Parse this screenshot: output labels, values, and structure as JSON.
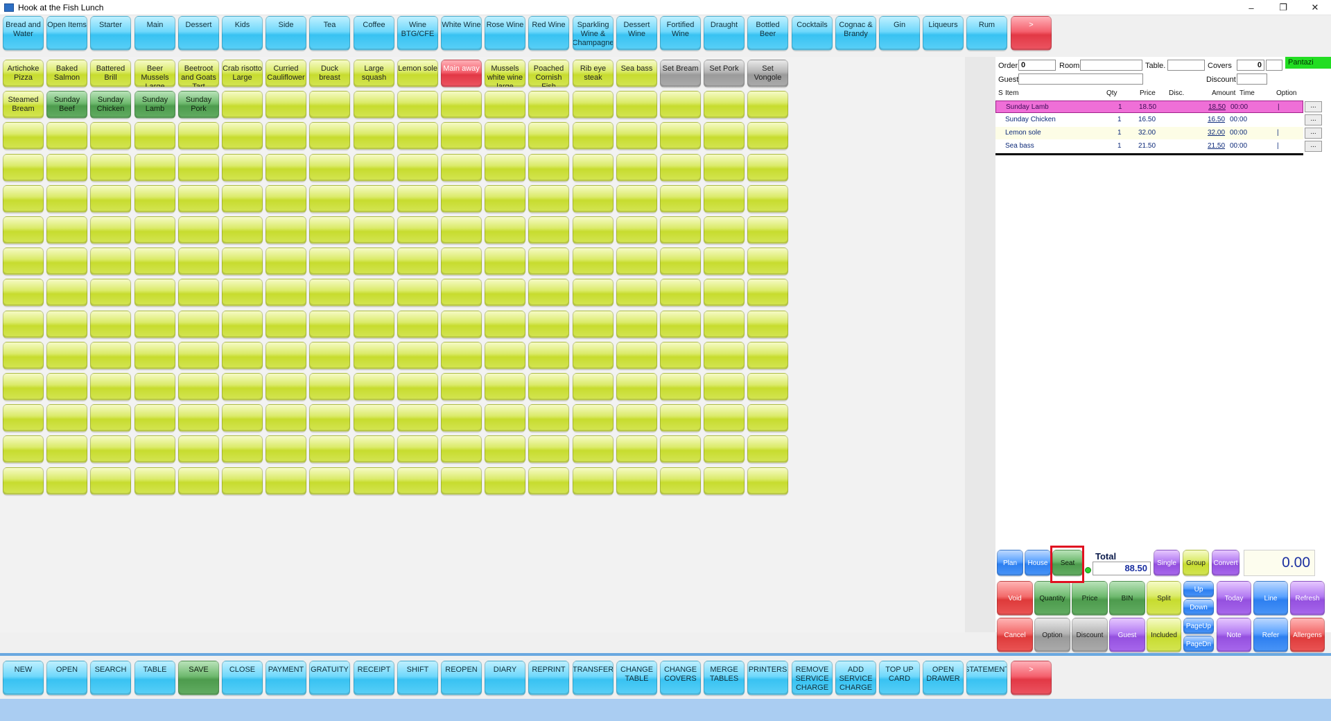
{
  "window": {
    "title": "Hook at the Fish Lunch",
    "controls": {
      "minimize": "–",
      "maximize": "❐",
      "close": "✕"
    }
  },
  "categories": [
    {
      "label": "Bread and Water",
      "color": "cyan"
    },
    {
      "label": "Open Items",
      "color": "cyan"
    },
    {
      "label": "Starter",
      "color": "cyan"
    },
    {
      "label": "Main",
      "color": "cyan"
    },
    {
      "label": "Dessert",
      "color": "cyan"
    },
    {
      "label": "Kids",
      "color": "cyan"
    },
    {
      "label": "Side",
      "color": "cyan"
    },
    {
      "label": "Tea",
      "color": "cyan"
    },
    {
      "label": "Coffee",
      "color": "cyan"
    },
    {
      "label": "Wine BTG/CFE",
      "color": "cyan"
    },
    {
      "label": "White Wine",
      "color": "cyan"
    },
    {
      "label": "Rose Wine",
      "color": "cyan"
    },
    {
      "label": "Red Wine",
      "color": "cyan"
    },
    {
      "label": "Sparkling Wine & Champagne",
      "color": "cyan"
    },
    {
      "label": "Dessert Wine",
      "color": "cyan"
    },
    {
      "label": "Fortified Wine",
      "color": "cyan"
    },
    {
      "label": "Draught",
      "color": "cyan"
    },
    {
      "label": "Bottled Beer",
      "color": "cyan"
    },
    {
      "label": "Cocktails",
      "color": "cyan"
    },
    {
      "label": "Cognac & Brandy",
      "color": "cyan"
    },
    {
      "label": "Gin",
      "color": "cyan"
    },
    {
      "label": "Liqueurs",
      "color": "cyan"
    },
    {
      "label": "Rum",
      "color": "cyan"
    },
    {
      "label": ">",
      "color": "red"
    }
  ],
  "products": [
    {
      "label": "Artichoke Pizza",
      "color": "lime"
    },
    {
      "label": "Baked Salmon",
      "color": "lime"
    },
    {
      "label": "Battered Brill",
      "color": "lime"
    },
    {
      "label": "Beer Mussels Large",
      "color": "lime"
    },
    {
      "label": "Beetroot and Goats Tart",
      "color": "lime"
    },
    {
      "label": "Crab risotto Large",
      "color": "lime"
    },
    {
      "label": "Curried Cauliflower",
      "color": "lime"
    },
    {
      "label": "Duck breast",
      "color": "lime"
    },
    {
      "label": "Large squash",
      "color": "lime"
    },
    {
      "label": "Lemon sole",
      "color": "lime"
    },
    {
      "label": "Main away",
      "color": "red"
    },
    {
      "label": "Mussels white wine large",
      "color": "lime"
    },
    {
      "label": "Poached Cornish Fish",
      "color": "lime"
    },
    {
      "label": "Rib eye steak",
      "color": "lime"
    },
    {
      "label": "Sea bass",
      "color": "lime"
    },
    {
      "label": "Set Bream",
      "color": "gray"
    },
    {
      "label": "Set Pork",
      "color": "gray"
    },
    {
      "label": "Set Vongole",
      "color": "gray"
    },
    {
      "label": "Steamed Bream",
      "color": "lime"
    },
    {
      "label": "Sunday Beef",
      "color": "green"
    },
    {
      "label": "Sunday Chicken",
      "color": "green"
    },
    {
      "label": "Sunday Lamb",
      "color": "green"
    },
    {
      "label": "Sunday Pork",
      "color": "green"
    }
  ],
  "order_header": {
    "order_label": "Order",
    "order_value": "0",
    "room_label": "Room",
    "room_value": "",
    "table_label": "Table.",
    "table_value": "",
    "covers_label": "Covers",
    "covers_value": "0",
    "guest_label": "Guest",
    "guest_value": "",
    "discount_label": "Discount",
    "discount_value": "",
    "user": "Pantazi"
  },
  "item_columns": [
    "S",
    "Item",
    "Qty",
    "Price",
    "Disc.",
    "Amount",
    "Time",
    "Option"
  ],
  "items": [
    {
      "name": "Sunday Lamb",
      "qty": "1",
      "price": "18.50",
      "amount": "18.50",
      "time": "00:00",
      "option": "|",
      "selected": true
    },
    {
      "name": "Sunday Chicken",
      "qty": "1",
      "price": "16.50",
      "amount": "16.50",
      "time": "00:00",
      "option": "",
      "selected": false
    },
    {
      "name": "Lemon sole",
      "qty": "1",
      "price": "32.00",
      "amount": "32.00",
      "time": "00:00",
      "option": "|",
      "selected": false
    },
    {
      "name": "Sea bass",
      "qty": "1",
      "price": "21.50",
      "amount": "21.50",
      "time": "00:00",
      "option": "|",
      "selected": false
    }
  ],
  "option_button_label": "...",
  "total": {
    "label": "Total",
    "value": "88.50"
  },
  "amount_display": "0.00",
  "action_row1": [
    {
      "label": "Plan",
      "color": "blue"
    },
    {
      "label": "House",
      "color": "blue"
    },
    {
      "label": "Seat",
      "color": "green"
    },
    {
      "label": "Single",
      "color": "purple"
    },
    {
      "label": "Group",
      "color": "olive"
    },
    {
      "label": "Convert",
      "color": "purple"
    }
  ],
  "action_row2": [
    {
      "label": "Void",
      "color": "redpos"
    },
    {
      "label": "Quantity",
      "color": "green"
    },
    {
      "label": "Price",
      "color": "green"
    },
    {
      "label": "BIN",
      "color": "green"
    },
    {
      "label": "Split",
      "color": "olive"
    },
    {
      "label": "Up",
      "color": "blue"
    },
    {
      "label": "Down",
      "color": "blue"
    },
    {
      "label": "Today",
      "color": "purple"
    },
    {
      "label": "Line",
      "color": "blue"
    },
    {
      "label": "Refresh",
      "color": "purple"
    }
  ],
  "action_row3": [
    {
      "label": "Cancel",
      "color": "redpos"
    },
    {
      "label": "Option",
      "color": "gray"
    },
    {
      "label": "Discount",
      "color": "gray"
    },
    {
      "label": "Guest",
      "color": "purple"
    },
    {
      "label": "Included",
      "color": "olive"
    },
    {
      "label": "PageUp",
      "color": "blue"
    },
    {
      "label": "PageDn",
      "color": "blue"
    },
    {
      "label": "Note",
      "color": "purple"
    },
    {
      "label": "Refer",
      "color": "blue"
    },
    {
      "label": "Allergens",
      "color": "redpos"
    }
  ],
  "bottom_buttons": [
    {
      "label": "NEW",
      "color": "cyan"
    },
    {
      "label": "OPEN",
      "color": "cyan"
    },
    {
      "label": "SEARCH",
      "color": "cyan"
    },
    {
      "label": "TABLE",
      "color": "cyan"
    },
    {
      "label": "SAVE",
      "color": "green"
    },
    {
      "label": "CLOSE",
      "color": "cyan"
    },
    {
      "label": "PAYMENT",
      "color": "cyan"
    },
    {
      "label": "GRATUITY",
      "color": "cyan"
    },
    {
      "label": "RECEIPT",
      "color": "cyan"
    },
    {
      "label": "SHIFT",
      "color": "cyan"
    },
    {
      "label": "REOPEN",
      "color": "cyan"
    },
    {
      "label": "DIARY",
      "color": "cyan"
    },
    {
      "label": "REPRINT",
      "color": "cyan"
    },
    {
      "label": "TRANSFER",
      "color": "cyan"
    },
    {
      "label": "CHANGE TABLE",
      "color": "cyan"
    },
    {
      "label": "CHANGE COVERS",
      "color": "cyan"
    },
    {
      "label": "MERGE TABLES",
      "color": "cyan"
    },
    {
      "label": "PRINTERS",
      "color": "cyan"
    },
    {
      "label": "REMOVE SERVICE CHARGE",
      "color": "cyan"
    },
    {
      "label": "ADD SERVICE CHARGE",
      "color": "cyan"
    },
    {
      "label": "TOP UP CARD",
      "color": "cyan"
    },
    {
      "label": "OPEN DRAWER",
      "color": "cyan"
    },
    {
      "label": "STATEMENT",
      "color": "cyan"
    },
    {
      ">": "",
      "label": ">",
      "color": "red"
    }
  ]
}
